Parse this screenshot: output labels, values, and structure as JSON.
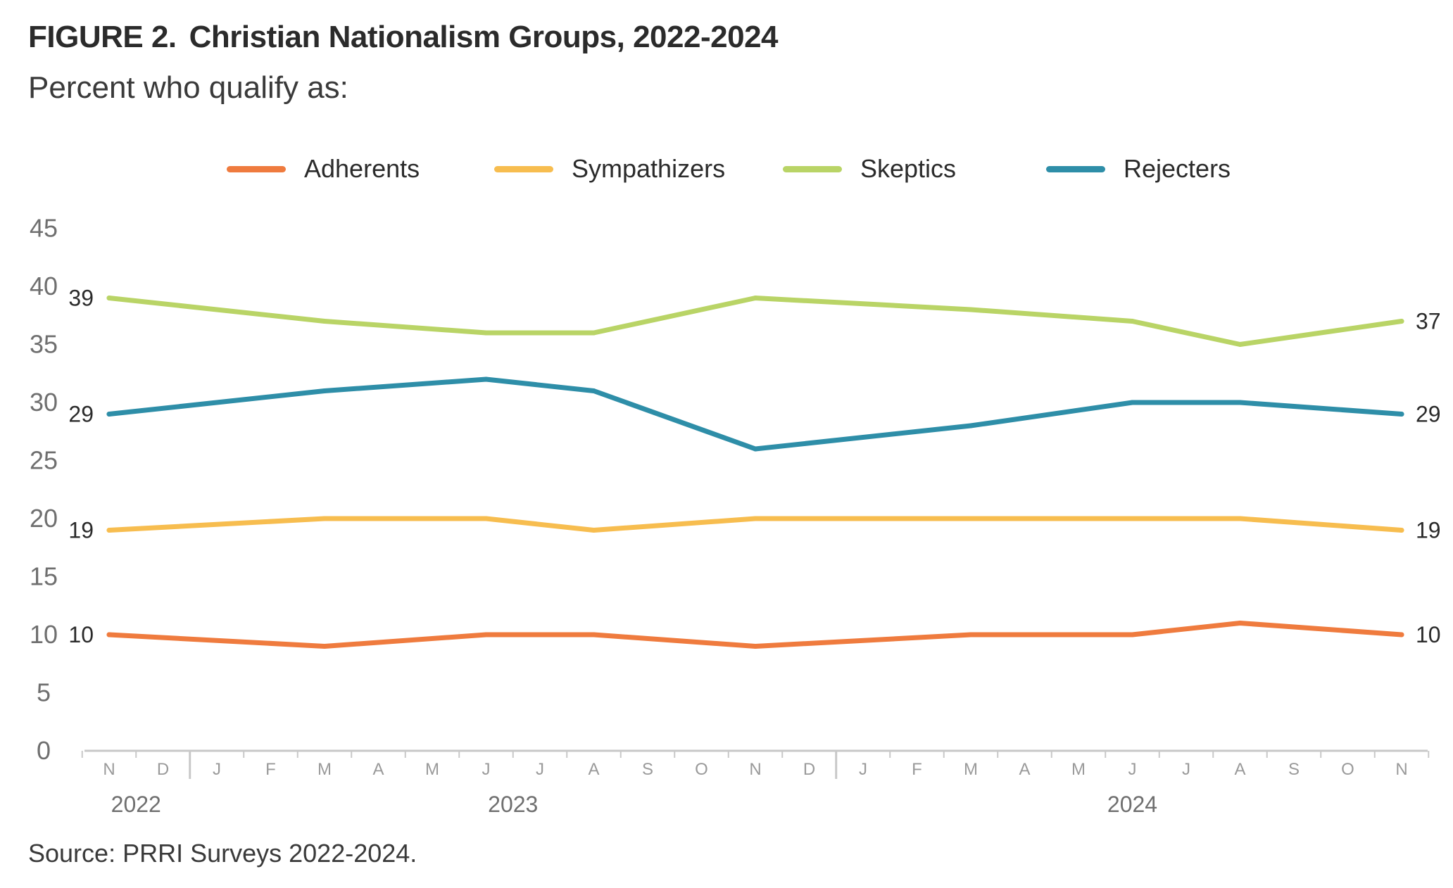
{
  "header": {
    "figure_label": "FIGURE 2.",
    "title": "Christian Nationalism Groups, 2022-2024",
    "subtitle": "Percent who qualify as:"
  },
  "footer": {
    "source": "Source: PRRI Surveys 2022-2024."
  },
  "chart_data": {
    "type": "line",
    "title": "Christian Nationalism Groups, 2022-2024",
    "subtitle": "Percent who qualify as:",
    "xlabel": "",
    "ylabel": "",
    "ylim": [
      0,
      45
    ],
    "yticks": [
      0,
      5,
      10,
      15,
      20,
      25,
      30,
      35,
      40,
      45
    ],
    "grid": false,
    "legend_position": "top",
    "month_ticks": [
      "N",
      "D",
      "J",
      "F",
      "M",
      "A",
      "M",
      "J",
      "J",
      "A",
      "S",
      "O",
      "N",
      "D",
      "J",
      "F",
      "M",
      "A",
      "M",
      "J",
      "J",
      "A",
      "S",
      "O",
      "N"
    ],
    "year_labels": [
      {
        "label": "2022",
        "month_index": 0.5
      },
      {
        "label": "2023",
        "month_index": 7.5
      },
      {
        "label": "2024",
        "month_index": 19
      }
    ],
    "year_dividers": [
      1.5,
      13.5
    ],
    "series": [
      {
        "name": "Adherents",
        "color": "#ef7b3e",
        "x": [
          0,
          4,
          7,
          9,
          12,
          16,
          19,
          21,
          24
        ],
        "values": [
          10,
          9,
          10,
          10,
          9,
          10,
          10,
          11,
          10
        ],
        "start_label": "10",
        "end_label": "10"
      },
      {
        "name": "Sympathizers",
        "color": "#f7bd4f",
        "x": [
          0,
          4,
          7,
          9,
          12,
          16,
          19,
          21,
          24
        ],
        "values": [
          19,
          20,
          20,
          19,
          20,
          20,
          20,
          20,
          19
        ],
        "start_label": "19",
        "end_label": "19"
      },
      {
        "name": "Skeptics",
        "color": "#b9d466",
        "x": [
          0,
          4,
          7,
          9,
          12,
          16,
          19,
          21,
          24
        ],
        "values": [
          39,
          37,
          36,
          36,
          39,
          38,
          37,
          35,
          37
        ],
        "start_label": "39",
        "end_label": "37"
      },
      {
        "name": "Rejecters",
        "color": "#2e8ea8",
        "x": [
          0,
          4,
          7,
          9,
          12,
          16,
          19,
          21,
          24
        ],
        "values": [
          29,
          31,
          32,
          31,
          26,
          28,
          30,
          30,
          29
        ],
        "start_label": "29",
        "end_label": "29"
      }
    ]
  }
}
